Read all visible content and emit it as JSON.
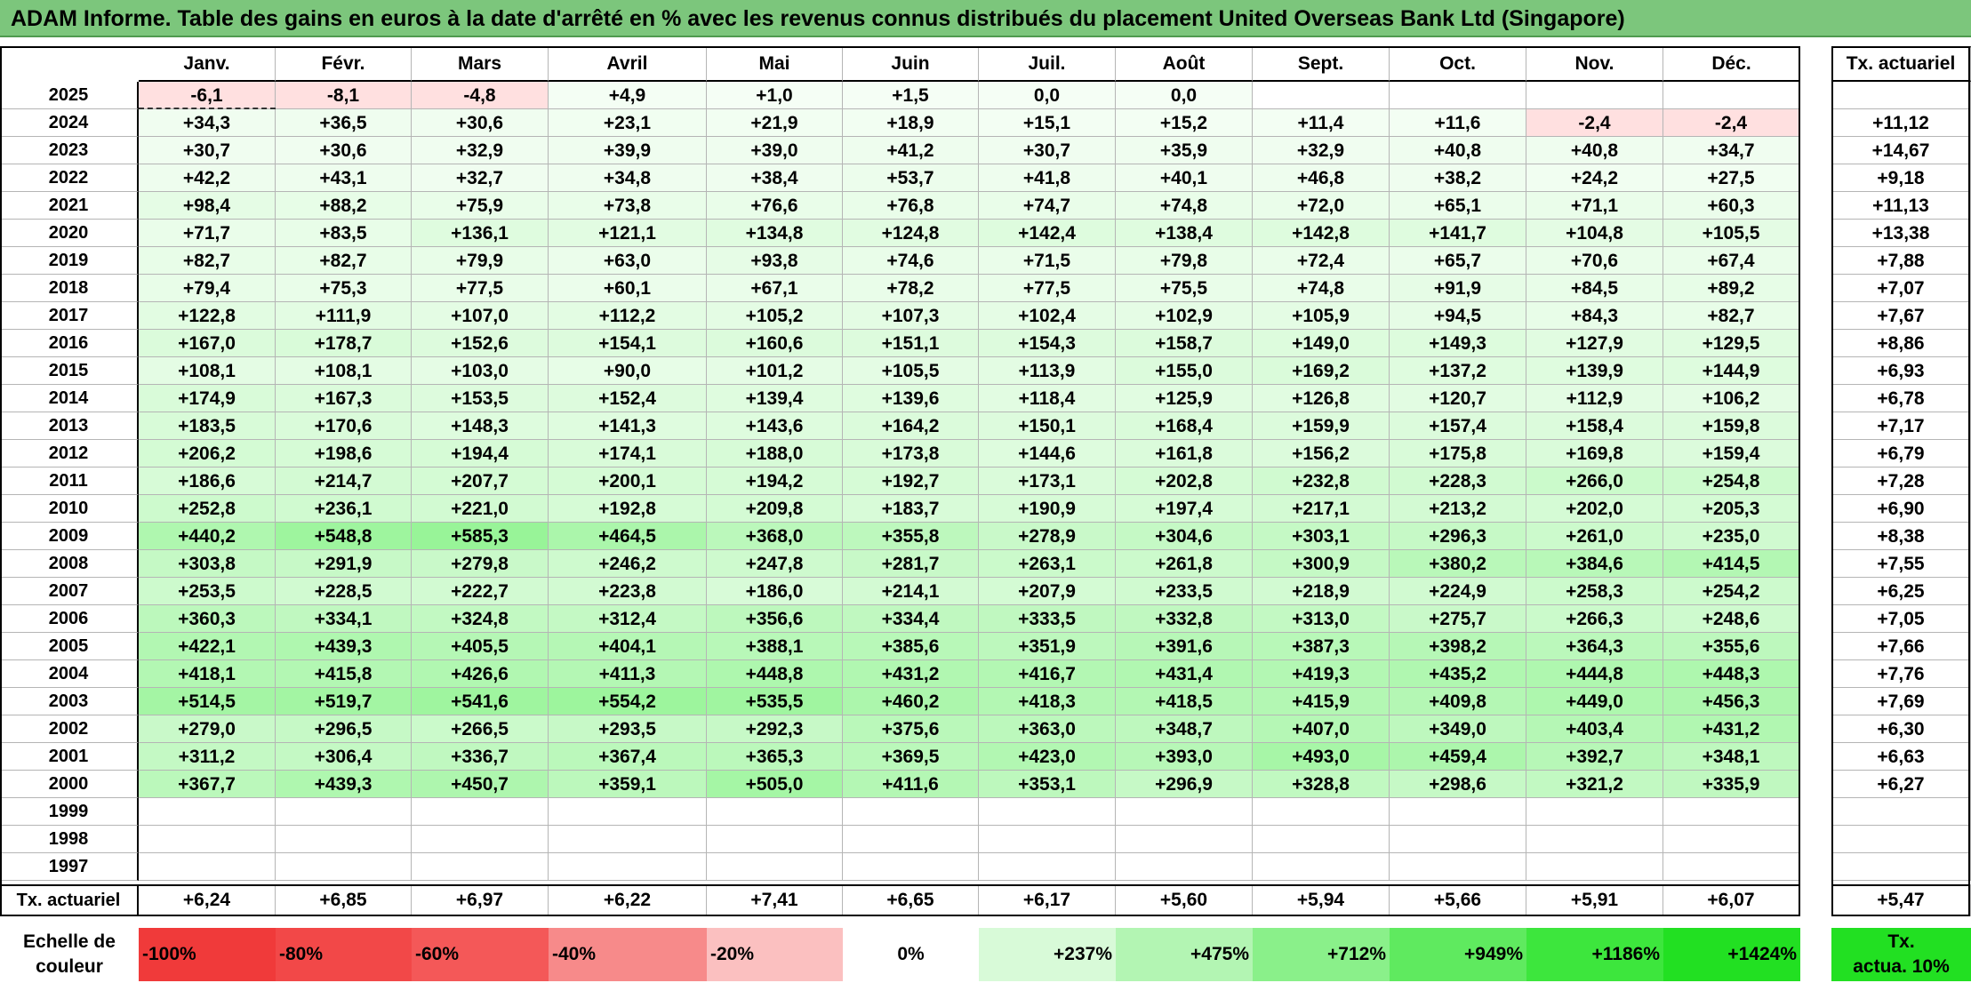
{
  "title": "ADAM Informe. Table des gains en euros à la date d'arrêté en % avec les revenus connus distribués du placement United Overseas Bank Ltd (Singapore)",
  "months": [
    "Janv.",
    "Févr.",
    "Mars",
    "Avril",
    "Mai",
    "Juin",
    "Juil.",
    "Août",
    "Sept.",
    "Oct.",
    "Nov.",
    "Déc."
  ],
  "tx_header": "Tx. actuariel",
  "rows": [
    {
      "year": "2025",
      "values": [
        "-6,1",
        "-8,1",
        "-4,8",
        "+4,9",
        "+1,0",
        "+1,5",
        "0,0",
        "0,0",
        "",
        "",
        "",
        ""
      ],
      "tx": ""
    },
    {
      "year": "2024",
      "values": [
        "+34,3",
        "+36,5",
        "+30,6",
        "+23,1",
        "+21,9",
        "+18,9",
        "+15,1",
        "+15,2",
        "+11,4",
        "+11,6",
        "-2,4",
        "-2,4"
      ],
      "tx": "+11,12"
    },
    {
      "year": "2023",
      "values": [
        "+30,7",
        "+30,6",
        "+32,9",
        "+39,9",
        "+39,0",
        "+41,2",
        "+30,7",
        "+35,9",
        "+32,9",
        "+40,8",
        "+40,8",
        "+34,7"
      ],
      "tx": "+14,67"
    },
    {
      "year": "2022",
      "values": [
        "+42,2",
        "+43,1",
        "+32,7",
        "+34,8",
        "+38,4",
        "+53,7",
        "+41,8",
        "+40,1",
        "+46,8",
        "+38,2",
        "+24,2",
        "+27,5"
      ],
      "tx": "+9,18"
    },
    {
      "year": "2021",
      "values": [
        "+98,4",
        "+88,2",
        "+75,9",
        "+73,8",
        "+76,6",
        "+76,8",
        "+74,7",
        "+74,8",
        "+72,0",
        "+65,1",
        "+71,1",
        "+60,3"
      ],
      "tx": "+11,13"
    },
    {
      "year": "2020",
      "values": [
        "+71,7",
        "+83,5",
        "+136,1",
        "+121,1",
        "+134,8",
        "+124,8",
        "+142,4",
        "+138,4",
        "+142,8",
        "+141,7",
        "+104,8",
        "+105,5"
      ],
      "tx": "+13,38"
    },
    {
      "year": "2019",
      "values": [
        "+82,7",
        "+82,7",
        "+79,9",
        "+63,0",
        "+93,8",
        "+74,6",
        "+71,5",
        "+79,8",
        "+72,4",
        "+65,7",
        "+70,6",
        "+67,4"
      ],
      "tx": "+7,88"
    },
    {
      "year": "2018",
      "values": [
        "+79,4",
        "+75,3",
        "+77,5",
        "+60,1",
        "+67,1",
        "+78,2",
        "+77,5",
        "+75,5",
        "+74,8",
        "+91,9",
        "+84,5",
        "+89,2"
      ],
      "tx": "+7,07"
    },
    {
      "year": "2017",
      "values": [
        "+122,8",
        "+111,9",
        "+107,0",
        "+112,2",
        "+105,2",
        "+107,3",
        "+102,4",
        "+102,9",
        "+105,9",
        "+94,5",
        "+84,3",
        "+82,7"
      ],
      "tx": "+7,67"
    },
    {
      "year": "2016",
      "values": [
        "+167,0",
        "+178,7",
        "+152,6",
        "+154,1",
        "+160,6",
        "+151,1",
        "+154,3",
        "+158,7",
        "+149,0",
        "+149,3",
        "+127,9",
        "+129,5"
      ],
      "tx": "+8,86"
    },
    {
      "year": "2015",
      "values": [
        "+108,1",
        "+108,1",
        "+103,0",
        "+90,0",
        "+101,2",
        "+105,5",
        "+113,9",
        "+155,0",
        "+169,2",
        "+137,2",
        "+139,9",
        "+144,9"
      ],
      "tx": "+6,93"
    },
    {
      "year": "2014",
      "values": [
        "+174,9",
        "+167,3",
        "+153,5",
        "+152,4",
        "+139,4",
        "+139,6",
        "+118,4",
        "+125,9",
        "+126,8",
        "+120,7",
        "+112,9",
        "+106,2"
      ],
      "tx": "+6,78"
    },
    {
      "year": "2013",
      "values": [
        "+183,5",
        "+170,6",
        "+148,3",
        "+141,3",
        "+143,6",
        "+164,2",
        "+150,1",
        "+168,4",
        "+159,9",
        "+157,4",
        "+158,4",
        "+159,8"
      ],
      "tx": "+7,17"
    },
    {
      "year": "2012",
      "values": [
        "+206,2",
        "+198,6",
        "+194,4",
        "+174,1",
        "+188,0",
        "+173,8",
        "+144,6",
        "+161,8",
        "+156,2",
        "+175,8",
        "+169,8",
        "+159,4"
      ],
      "tx": "+6,79"
    },
    {
      "year": "2011",
      "values": [
        "+186,6",
        "+214,7",
        "+207,7",
        "+200,1",
        "+194,2",
        "+192,7",
        "+173,1",
        "+202,8",
        "+232,8",
        "+228,3",
        "+266,0",
        "+254,8"
      ],
      "tx": "+7,28"
    },
    {
      "year": "2010",
      "values": [
        "+252,8",
        "+236,1",
        "+221,0",
        "+192,8",
        "+209,8",
        "+183,7",
        "+190,9",
        "+197,4",
        "+217,1",
        "+213,2",
        "+202,0",
        "+205,3"
      ],
      "tx": "+6,90"
    },
    {
      "year": "2009",
      "values": [
        "+440,2",
        "+548,8",
        "+585,3",
        "+464,5",
        "+368,0",
        "+355,8",
        "+278,9",
        "+304,6",
        "+303,1",
        "+296,3",
        "+261,0",
        "+235,0"
      ],
      "tx": "+8,38"
    },
    {
      "year": "2008",
      "values": [
        "+303,8",
        "+291,9",
        "+279,8",
        "+246,2",
        "+247,8",
        "+281,7",
        "+263,1",
        "+261,8",
        "+300,9",
        "+380,2",
        "+384,6",
        "+414,5"
      ],
      "tx": "+7,55"
    },
    {
      "year": "2007",
      "values": [
        "+253,5",
        "+228,5",
        "+222,7",
        "+223,8",
        "+186,0",
        "+214,1",
        "+207,9",
        "+233,5",
        "+218,9",
        "+224,9",
        "+258,3",
        "+254,2"
      ],
      "tx": "+6,25"
    },
    {
      "year": "2006",
      "values": [
        "+360,3",
        "+334,1",
        "+324,8",
        "+312,4",
        "+356,6",
        "+334,4",
        "+333,5",
        "+332,8",
        "+313,0",
        "+275,7",
        "+266,3",
        "+248,6"
      ],
      "tx": "+7,05"
    },
    {
      "year": "2005",
      "values": [
        "+422,1",
        "+439,3",
        "+405,5",
        "+404,1",
        "+388,1",
        "+385,6",
        "+351,9",
        "+391,6",
        "+387,3",
        "+398,2",
        "+364,3",
        "+355,6"
      ],
      "tx": "+7,66"
    },
    {
      "year": "2004",
      "values": [
        "+418,1",
        "+415,8",
        "+426,6",
        "+411,3",
        "+448,8",
        "+431,2",
        "+416,7",
        "+431,4",
        "+419,3",
        "+435,2",
        "+444,8",
        "+448,3"
      ],
      "tx": "+7,76"
    },
    {
      "year": "2003",
      "values": [
        "+514,5",
        "+519,7",
        "+541,6",
        "+554,2",
        "+535,5",
        "+460,2",
        "+418,3",
        "+418,5",
        "+415,9",
        "+409,8",
        "+449,0",
        "+456,3"
      ],
      "tx": "+7,69"
    },
    {
      "year": "2002",
      "values": [
        "+279,0",
        "+296,5",
        "+266,5",
        "+293,5",
        "+292,3",
        "+375,6",
        "+363,0",
        "+348,7",
        "+407,0",
        "+349,0",
        "+403,4",
        "+431,2"
      ],
      "tx": "+6,30"
    },
    {
      "year": "2001",
      "values": [
        "+311,2",
        "+306,4",
        "+336,7",
        "+367,4",
        "+365,3",
        "+369,5",
        "+423,0",
        "+393,0",
        "+493,0",
        "+459,4",
        "+392,7",
        "+348,1"
      ],
      "tx": "+6,63"
    },
    {
      "year": "2000",
      "values": [
        "+367,7",
        "+439,3",
        "+450,7",
        "+359,1",
        "+505,0",
        "+411,6",
        "+353,1",
        "+296,9",
        "+328,8",
        "+298,6",
        "+321,2",
        "+335,9"
      ],
      "tx": "+6,27"
    },
    {
      "year": "1999",
      "values": [
        "",
        "",
        "",
        "",
        "",
        "",
        "",
        "",
        "",
        "",
        "",
        ""
      ],
      "tx": ""
    },
    {
      "year": "1998",
      "values": [
        "",
        "",
        "",
        "",
        "",
        "",
        "",
        "",
        "",
        "",
        "",
        ""
      ],
      "tx": ""
    },
    {
      "year": "1997",
      "values": [
        "",
        "",
        "",
        "",
        "",
        "",
        "",
        "",
        "",
        "",
        "",
        ""
      ],
      "tx": ""
    }
  ],
  "footer": {
    "label": "Tx. actuariel",
    "values": [
      "+6,24",
      "+6,85",
      "+6,97",
      "+6,22",
      "+7,41",
      "+6,65",
      "+6,17",
      "+5,60",
      "+5,94",
      "+5,66",
      "+5,91",
      "+6,07"
    ],
    "tx": "+5,47"
  },
  "legend": {
    "label_line1": "Echelle de",
    "label_line2": "couleur",
    "items": [
      {
        "text": "-100%",
        "color": "#f03a3a",
        "align": "left"
      },
      {
        "text": "-80%",
        "color": "#f24848",
        "align": "left"
      },
      {
        "text": "-60%",
        "color": "#f45858",
        "align": "left"
      },
      {
        "text": "-40%",
        "color": "#f78a8a",
        "align": "left"
      },
      {
        "text": "-20%",
        "color": "#fbc0c0",
        "align": "left"
      },
      {
        "text": "0%",
        "color": "#ffffff",
        "align": "center"
      },
      {
        "text": "+237%",
        "color": "#d8fad8",
        "align": "right"
      },
      {
        "text": "+475%",
        "color": "#b3f5b3",
        "align": "right"
      },
      {
        "text": "+712%",
        "color": "#8af08a",
        "align": "right"
      },
      {
        "text": "+949%",
        "color": "#5fea5f",
        "align": "right"
      },
      {
        "text": "+1186%",
        "color": "#3de63d",
        "align": "right"
      },
      {
        "text": "+1424%",
        "color": "#22e022",
        "align": "right"
      }
    ],
    "tx_line1": "Tx.",
    "tx_line2": "actua. 10%",
    "tx_color": "#22e022"
  },
  "colors": {
    "title_bg": "#7cc67c",
    "negative_bg": "#ffe0e0"
  }
}
